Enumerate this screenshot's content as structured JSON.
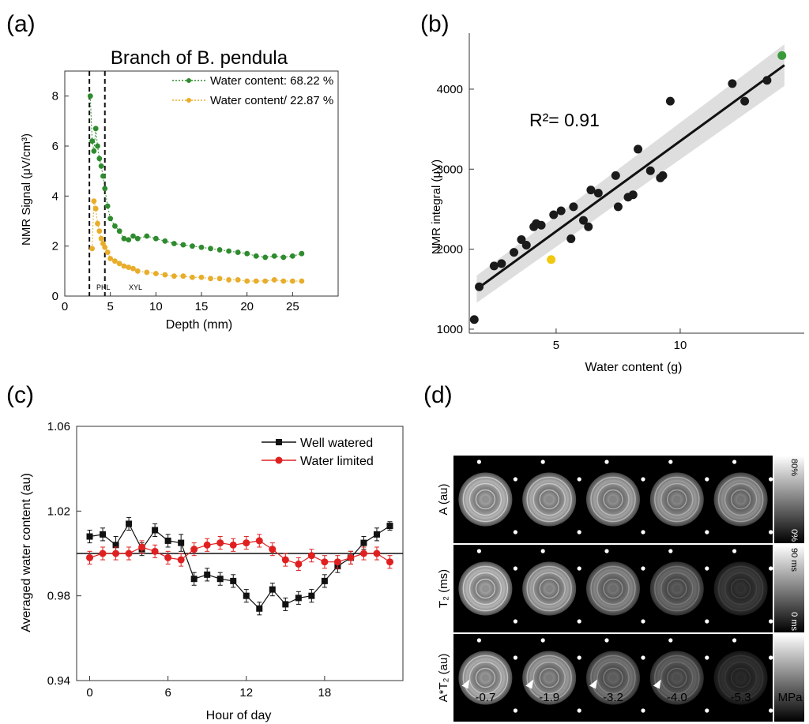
{
  "panel_labels": [
    "(a)",
    "(b)",
    "(c)",
    "(d)"
  ],
  "chart_data": [
    {
      "panel": "(a)",
      "type": "scatter",
      "title": "Branch of B. pendula",
      "xlabel": "Depth (mm)",
      "ylabel": "NMR Signal (μV/cm³)",
      "xlim": [
        0,
        30
      ],
      "ylim": [
        0,
        9
      ],
      "xticks": [
        0,
        5,
        10,
        15,
        20,
        25
      ],
      "yticks": [
        0,
        2,
        4,
        6,
        8
      ],
      "legend_position": "top-right",
      "region_labels": [
        "PHL",
        "XYL"
      ],
      "vlines": [
        2.7,
        4.4
      ],
      "series": [
        {
          "name": "Water content: 68.22 %",
          "color": "#2e8b2e",
          "x": [
            2.8,
            3.0,
            3.2,
            3.4,
            3.6,
            3.8,
            4.0,
            4.2,
            4.4,
            4.7,
            5.0,
            5.5,
            6.0,
            6.5,
            7.0,
            7.5,
            8.0,
            9.0,
            10.0,
            11.0,
            12.0,
            13.0,
            14.0,
            15.0,
            16.0,
            17.0,
            18.0,
            19.0,
            20.0,
            21.0,
            22.0,
            23.0,
            24.0,
            25.0,
            26.0
          ],
          "y": [
            8.0,
            6.2,
            5.8,
            6.7,
            6.0,
            5.5,
            5.2,
            4.8,
            4.3,
            3.6,
            3.1,
            2.8,
            2.6,
            2.3,
            2.25,
            2.4,
            2.3,
            2.4,
            2.3,
            2.2,
            2.1,
            2.05,
            2.0,
            1.95,
            1.9,
            1.85,
            1.8,
            1.75,
            1.7,
            1.6,
            1.55,
            1.6,
            1.55,
            1.6,
            1.7
          ]
        },
        {
          "name": "Water content/ 22.87 %",
          "color": "#e8ad2a",
          "x": [
            3.0,
            3.2,
            3.4,
            3.6,
            3.8,
            4.0,
            4.2,
            4.4,
            4.7,
            5.0,
            5.5,
            6.0,
            6.5,
            7.0,
            7.5,
            8.0,
            9.0,
            10.0,
            11.0,
            12.0,
            13.0,
            14.0,
            15.0,
            16.0,
            17.0,
            18.0,
            19.0,
            20.0,
            21.0,
            22.0,
            23.0,
            24.0,
            25.0,
            26.0
          ],
          "y": [
            1.9,
            3.8,
            3.5,
            2.9,
            2.6,
            2.3,
            2.1,
            1.95,
            1.75,
            1.5,
            1.4,
            1.3,
            1.2,
            1.15,
            1.1,
            1.0,
            0.95,
            0.9,
            0.85,
            0.8,
            0.8,
            0.75,
            0.75,
            0.7,
            0.7,
            0.65,
            0.65,
            0.6,
            0.6,
            0.6,
            0.65,
            0.6,
            0.6,
            0.6
          ]
        }
      ]
    },
    {
      "panel": "(b)",
      "type": "scatter",
      "xlabel": "Water content (g)",
      "ylabel": "NMR integral (μV)",
      "xlim": [
        1.5,
        15
      ],
      "ylim": [
        950,
        4700
      ],
      "xticks": [
        5,
        10
      ],
      "yticks": [
        1000,
        2000,
        3000,
        4000
      ],
      "annotation": "R²= 0.91",
      "fit_line": {
        "x": [
          1.8,
          14.2
        ],
        "y": [
          1500,
          4300
        ]
      },
      "points": {
        "x": [
          1.7,
          1.9,
          2.5,
          2.8,
          3.3,
          3.6,
          3.8,
          4.1,
          4.2,
          4.4,
          4.9,
          5.2,
          5.6,
          5.7,
          6.1,
          6.3,
          6.4,
          6.7,
          7.4,
          7.5,
          7.9,
          8.1,
          8.3,
          8.8,
          9.2,
          9.3,
          9.6,
          12.1,
          12.6,
          13.5
        ],
        "y": [
          1120,
          1530,
          1790,
          1820,
          1960,
          2120,
          2050,
          2280,
          2320,
          2300,
          2430,
          2480,
          2130,
          2530,
          2360,
          2280,
          2740,
          2700,
          2920,
          2530,
          2650,
          2680,
          3250,
          2980,
          2890,
          2920,
          3850,
          4070,
          3850,
          4110
        ]
      },
      "highlight_points": [
        {
          "x": 4.8,
          "y": 1870,
          "color": "#f2c80f"
        },
        {
          "x": 14.1,
          "y": 4420,
          "color": "#3a9a3a"
        }
      ]
    },
    {
      "panel": "(c)",
      "type": "line",
      "xlabel": "Hour of day",
      "ylabel": "Averaged water content (au)",
      "xlim": [
        -1,
        24
      ],
      "ylim": [
        0.94,
        1.06
      ],
      "xticks": [
        0,
        6,
        12,
        18
      ],
      "yticks": [
        0.94,
        0.98,
        1.02,
        1.06
      ],
      "hline": 1.0,
      "legend_position": "top-right",
      "x": [
        0,
        1,
        2,
        3,
        4,
        5,
        6,
        7,
        8,
        9,
        10,
        11,
        12,
        13,
        14,
        15,
        16,
        17,
        18,
        19,
        20,
        21,
        22,
        23
      ],
      "series": [
        {
          "name": "Well watered",
          "color": "#111111",
          "marker": "square",
          "values": [
            1.008,
            1.009,
            1.004,
            1.014,
            1.002,
            1.011,
            1.006,
            1.005,
            0.988,
            0.99,
            0.988,
            0.987,
            0.98,
            0.974,
            0.983,
            0.976,
            0.979,
            0.98,
            0.987,
            0.994,
            0.998,
            1.005,
            1.009,
            1.013
          ],
          "errors": [
            0.003,
            0.003,
            0.004,
            0.003,
            0.003,
            0.003,
            0.003,
            0.004,
            0.003,
            0.003,
            0.003,
            0.003,
            0.003,
            0.003,
            0.003,
            0.003,
            0.003,
            0.003,
            0.003,
            0.003,
            0.003,
            0.003,
            0.003,
            0.002
          ]
        },
        {
          "name": "Water limited",
          "color": "#e02020",
          "marker": "circle",
          "values": [
            0.998,
            1.0,
            1.0,
            1.0,
            1.003,
            1.001,
            0.998,
            0.997,
            1.002,
            1.004,
            1.005,
            1.004,
            1.005,
            1.006,
            1.002,
            0.997,
            0.995,
            0.999,
            0.996,
            0.996,
            0.998,
            1.0,
            1.0,
            0.996
          ],
          "errors": [
            0.003,
            0.003,
            0.003,
            0.003,
            0.003,
            0.003,
            0.003,
            0.003,
            0.003,
            0.003,
            0.003,
            0.003,
            0.003,
            0.003,
            0.003,
            0.003,
            0.003,
            0.003,
            0.003,
            0.003,
            0.003,
            0.003,
            0.003,
            0.003
          ]
        }
      ]
    },
    {
      "panel": "(d)",
      "type": "image_grid",
      "row_labels": [
        "A (au)",
        "T₂ (ms)",
        "A*T₂ (au)"
      ],
      "col_labels": [
        "-0.7",
        "-1.9",
        "-3.2",
        "-4.0",
        "-5.3"
      ],
      "unit_label": "MPa",
      "colorbar_labels": [
        [
          "80%",
          "0%"
        ],
        [
          "90 ms",
          "0 ms"
        ],
        [
          "",
          ""
        ]
      ],
      "ring_intensity": [
        [
          0.95,
          0.9,
          0.85,
          0.8,
          0.75
        ],
        [
          0.95,
          0.85,
          0.7,
          0.55,
          0.3
        ],
        [
          0.9,
          0.8,
          0.6,
          0.5,
          0.25
        ]
      ]
    }
  ]
}
